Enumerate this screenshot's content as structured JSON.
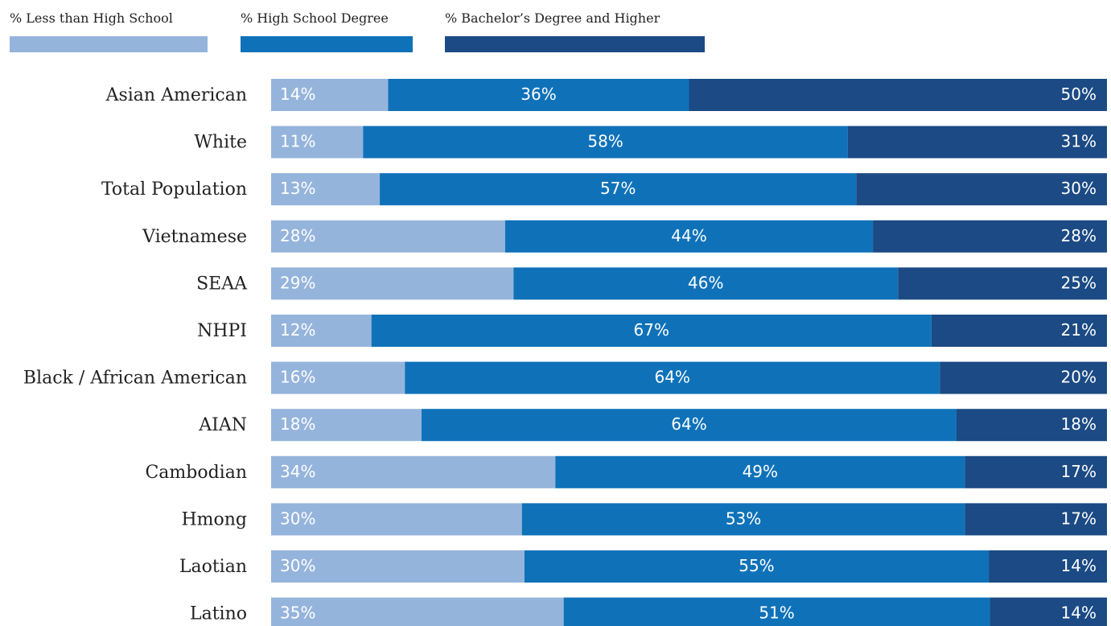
{
  "chart_data": {
    "type": "bar",
    "orientation": "horizontal",
    "stacked": true,
    "normalized": true,
    "title": "",
    "xlabel": "",
    "ylabel": "",
    "xlim": [
      0,
      100
    ],
    "grid": false,
    "legend_position": "top-left",
    "categories": [
      "Asian American",
      "White",
      "Total Population",
      "Vietnamese",
      "SEAA",
      "NHPI",
      "Black / African American",
      "AIAN",
      "Cambodian",
      "Hmong",
      "Laotian",
      "Latino"
    ],
    "series": [
      {
        "name": "% Less than High School",
        "color": "#95b4dc",
        "values": [
          14,
          11,
          13,
          28,
          29,
          12,
          16,
          18,
          34,
          30,
          30,
          35
        ],
        "labels": [
          "14%",
          "11%",
          "13%",
          "28%",
          "29%",
          "12%",
          "16%",
          "18%",
          "34%",
          "30%",
          "30%",
          "35%"
        ]
      },
      {
        "name": "% High School Degree",
        "color": "#0f72b9",
        "values": [
          36,
          58,
          57,
          44,
          46,
          67,
          64,
          64,
          49,
          53,
          55,
          51
        ],
        "labels": [
          "36%",
          "58%",
          "57%",
          "44%",
          "46%",
          "67%",
          "64%",
          "64%",
          "49%",
          "53%",
          "55%",
          "51%"
        ]
      },
      {
        "name": "% Bachelor’s Degree and Higher",
        "color": "#1b4a84",
        "values": [
          50,
          31,
          30,
          28,
          25,
          21,
          20,
          18,
          17,
          17,
          14,
          14
        ],
        "labels": [
          "50%",
          "31%",
          "30%",
          "28%",
          "25%",
          "21%",
          "20%",
          "18%",
          "17%",
          "17%",
          "14%",
          "14%"
        ]
      }
    ]
  }
}
